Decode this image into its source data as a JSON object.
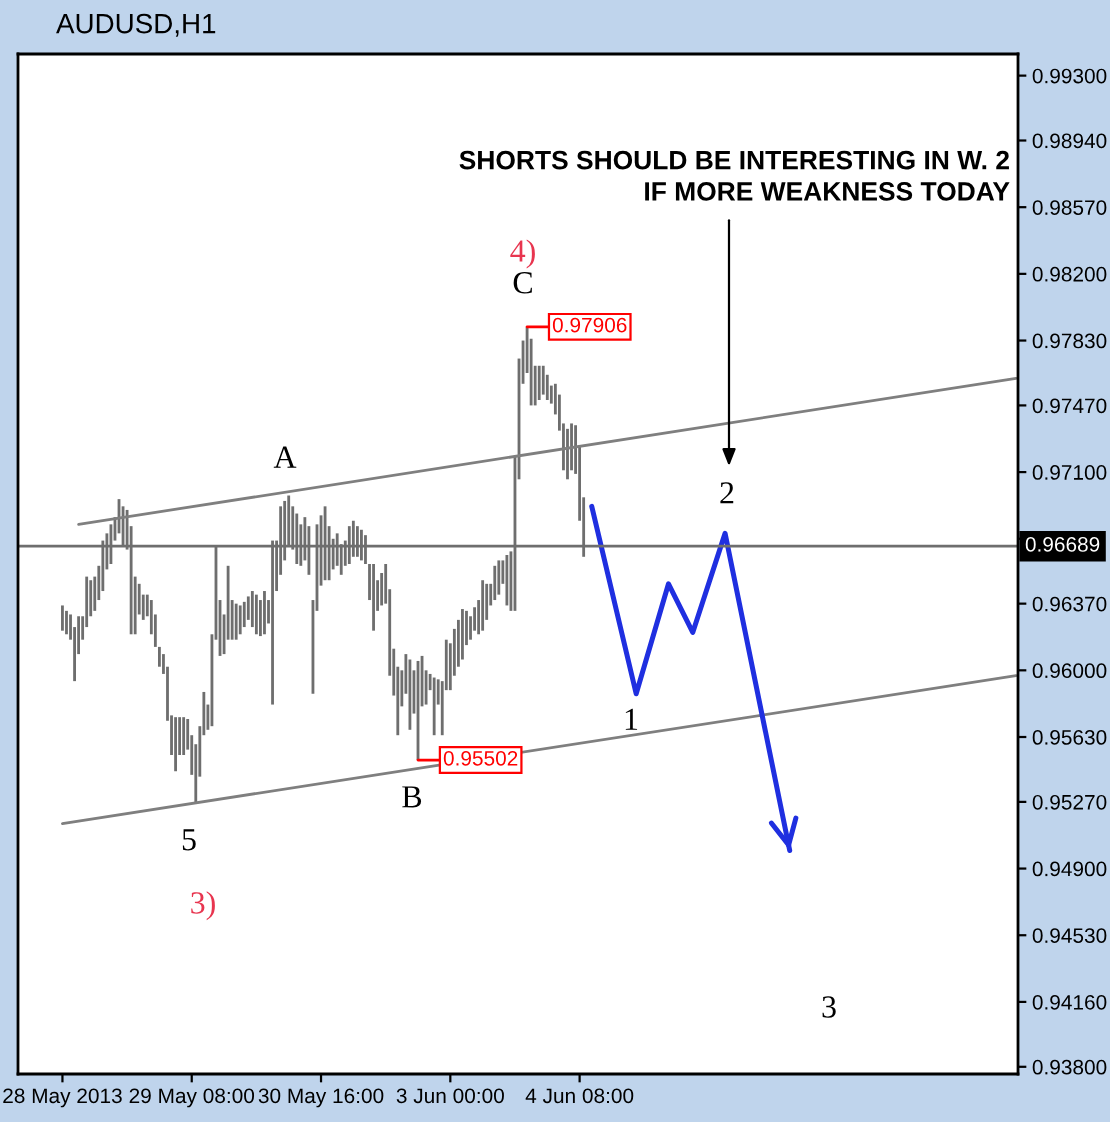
{
  "chart_data": {
    "type": "bar",
    "title": "AUDUSD,H1",
    "categories": [
      "28 May 2013",
      null,
      null,
      null,
      null,
      null,
      null,
      null,
      null,
      null,
      null,
      null,
      null,
      null,
      null,
      null,
      null,
      null,
      null,
      null,
      null,
      null,
      null,
      null,
      null,
      null,
      null,
      null,
      null,
      null,
      null,
      null,
      "29 May 08:00",
      null,
      null,
      null,
      null,
      null,
      null,
      null,
      null,
      null,
      null,
      null,
      null,
      null,
      null,
      null,
      null,
      null,
      null,
      null,
      null,
      null,
      null,
      null,
      null,
      null,
      null,
      null,
      null,
      null,
      null,
      null,
      "30 May 16:00",
      null,
      null,
      null,
      null,
      null,
      null,
      null,
      null,
      null,
      null,
      null,
      null,
      null,
      null,
      null,
      null,
      null,
      null,
      null,
      null,
      null,
      null,
      null,
      null,
      null,
      null,
      null,
      null,
      null,
      null,
      null,
      "3 Jun 00:00",
      null,
      null,
      null,
      null,
      null,
      null,
      null,
      null,
      null,
      null,
      null,
      null,
      null,
      null,
      null,
      null,
      null,
      null,
      null,
      null,
      null,
      null,
      null,
      null,
      null,
      null,
      null,
      null,
      null,
      null,
      null,
      "4 Jun 08:00",
      null,
      null,
      null,
      null,
      null,
      null,
      null,
      null,
      null,
      null,
      null,
      null,
      null,
      null,
      null,
      null,
      null,
      null,
      null,
      null,
      null,
      null,
      null,
      null,
      null,
      null,
      null,
      null,
      null,
      null,
      null,
      null,
      null,
      null,
      null,
      null,
      null,
      null,
      null,
      null,
      null,
      null,
      null,
      null,
      null,
      null,
      null,
      null,
      null,
      null,
      null,
      null,
      null,
      null,
      null,
      null,
      null,
      null,
      null,
      null,
      null,
      null,
      null,
      null,
      null,
      null,
      null,
      null,
      null,
      null,
      null,
      null,
      null,
      null,
      null,
      null,
      null,
      null,
      null,
      null,
      null,
      null,
      null,
      null,
      null,
      null,
      null,
      null,
      null,
      null,
      null,
      null,
      null,
      null,
      null,
      null,
      null,
      null,
      null,
      null,
      null,
      null,
      null,
      null,
      null,
      null,
      null,
      null
    ],
    "ylim": [
      0.9376,
      0.9942
    ],
    "yticks": [
      {
        "value": 0.993,
        "label": "0.99300"
      },
      {
        "value": 0.9894,
        "label": "0.98940"
      },
      {
        "value": 0.9857,
        "label": "0.98570"
      },
      {
        "value": 0.982,
        "label": "0.98200"
      },
      {
        "value": 0.9783,
        "label": "0.97830"
      },
      {
        "value": 0.9747,
        "label": "0.97470"
      },
      {
        "value": 0.971,
        "label": "0.97100"
      },
      {
        "value": 0.9673,
        "label": null
      },
      {
        "value": 0.9637,
        "label": "0.96370"
      },
      {
        "value": 0.96,
        "label": "0.96000"
      },
      {
        "value": 0.9563,
        "label": "0.95630"
      },
      {
        "value": 0.9527,
        "label": "0.95270"
      },
      {
        "value": 0.949,
        "label": "0.94900"
      },
      {
        "value": 0.9453,
        "label": "0.94530"
      },
      {
        "value": 0.9416,
        "label": "0.94160"
      },
      {
        "value": 0.938,
        "label": "0.93800"
      }
    ],
    "series": [
      {
        "color": "#6e6e6e",
        "base": [
          0.9622,
          0.962,
          0.9617,
          0.9594,
          0.9609,
          0.9617,
          0.9624,
          0.963,
          0.9633,
          0.9639,
          0.9644,
          0.9656,
          0.9659,
          0.9672,
          0.9676,
          0.9669,
          0.9667,
          0.962,
          0.962,
          0.9631,
          0.9628,
          0.963,
          0.962,
          0.9613,
          0.9602,
          0.9598,
          0.9572,
          0.9553,
          0.9544,
          0.9553,
          0.9553,
          0.9556,
          0.9542,
          0.9526,
          0.9541,
          0.9564,
          0.9567,
          0.9569,
          0.9617,
          0.9608,
          0.9609,
          0.9617,
          0.9617,
          0.9617,
          0.962,
          0.9624,
          0.9628,
          0.9624,
          0.962,
          0.9619,
          0.962,
          0.9626,
          0.9581,
          0.9644,
          0.9653,
          0.9661,
          0.9669,
          0.9667,
          0.9659,
          0.9658,
          0.9661,
          0.9653,
          0.9587,
          0.9633,
          0.9647,
          0.965,
          0.965,
          0.9656,
          0.9658,
          0.9653,
          0.9658,
          0.9659,
          0.9663,
          0.9663,
          0.9661,
          0.9659,
          0.9639,
          0.9622,
          0.9633,
          0.9636,
          0.9637,
          0.9597,
          0.9586,
          0.9564,
          0.958,
          0.9587,
          0.9567,
          0.9576,
          0.95502,
          0.958,
          0.9581,
          0.9589,
          0.9564,
          0.9581,
          0.9564,
          0.9589,
          0.9589,
          0.9597,
          0.9602,
          0.9606,
          0.9614,
          0.9617,
          0.9622,
          0.962,
          0.9622,
          0.9628,
          0.9636,
          0.9639,
          0.9642,
          0.9648,
          0.9636,
          0.9633,
          0.9633,
          0.9706,
          0.9759,
          0.9765,
          0.9747,
          0.9747,
          0.975,
          0.9753,
          0.975,
          0.9748,
          0.9742,
          0.9733,
          0.9711,
          0.9706,
          0.9711,
          0.9709,
          0.9683,
          0.9663,
          null,
          null,
          null,
          null,
          null,
          null,
          null,
          null,
          null,
          null,
          null,
          null,
          null,
          null,
          null,
          null,
          null,
          null,
          null,
          null,
          null,
          null,
          null,
          null,
          null,
          null,
          null,
          null,
          null,
          null,
          null,
          null,
          null,
          null,
          null,
          null,
          null,
          null,
          null,
          null,
          null,
          null,
          null,
          null,
          null,
          null,
          null,
          null,
          null,
          null,
          null,
          null,
          null,
          null,
          null,
          null,
          null,
          null,
          null,
          null,
          null,
          null,
          null,
          null,
          null,
          null,
          null,
          null,
          null,
          null,
          null,
          null,
          null,
          null,
          null,
          null,
          null,
          null,
          null,
          null,
          null,
          null,
          null,
          null,
          null,
          null,
          null,
          null,
          null,
          null,
          null,
          null,
          null,
          null,
          null,
          null,
          null,
          null,
          null,
          null,
          null,
          null,
          null,
          null,
          null,
          null,
          null
        ],
        "values": [
          0.0014,
          0.0013,
          0.0014,
          0.003,
          0.0021,
          0.0013,
          0.0028,
          0.002,
          0.0019,
          0.0019,
          0.0028,
          0.002,
          0.0022,
          0.0013,
          0.0019,
          0.0022,
          0.0022,
          0.006,
          0.0032,
          0.0017,
          0.0014,
          0.0012,
          0.0019,
          0.0018,
          0.0011,
          0.0011,
          0.003,
          0.0022,
          0.003,
          0.0021,
          0.0021,
          0.0017,
          0.0022,
          0.0033,
          0.0028,
          0.0024,
          0.0014,
          0.0051,
          0.0052,
          0.0031,
          0.0022,
          0.0041,
          0.0022,
          0.002,
          0.0016,
          0.0014,
          0.0013,
          0.002,
          0.0022,
          0.002,
          0.0024,
          0.0013,
          0.0091,
          0.0028,
          0.0038,
          0.0033,
          0.0028,
          0.0024,
          0.0028,
          0.0023,
          0.0024,
          0.0027,
          0.0052,
          0.0048,
          0.0039,
          0.0041,
          0.003,
          0.0017,
          0.0018,
          0.0017,
          0.0014,
          0.0021,
          0.002,
          0.0017,
          0.0017,
          0.0016,
          0.002,
          0.0037,
          0.0017,
          0.0018,
          0.0022,
          0.0048,
          0.0026,
          0.0038,
          0.002,
          0.0022,
          0.0039,
          0.0024,
          0.0055,
          0.0028,
          0.0019,
          0.0009,
          0.0032,
          0.0014,
          0.003,
          0.0028,
          0.0026,
          0.0026,
          0.0026,
          0.0028,
          0.0019,
          0.0013,
          0.0013,
          0.0019,
          0.0028,
          0.002,
          0.0012,
          0.0019,
          0.0019,
          0.0013,
          0.0028,
          0.0033,
          0.0086,
          0.0067,
          0.0024,
          0.00256,
          0.0037,
          0.0022,
          0.0019,
          0.0016,
          0.0014,
          0.001,
          0.0017,
          0.002,
          0.0026,
          0.0028,
          0.0026,
          0.0027,
          0.0042,
          0.0033,
          null,
          null,
          null,
          null,
          null,
          null,
          null,
          null,
          null,
          null,
          null,
          null,
          null,
          null,
          null,
          null,
          null,
          null,
          null,
          null,
          null,
          null,
          null,
          null,
          null,
          null,
          null,
          null,
          null,
          null,
          null,
          null,
          null,
          null,
          null,
          null,
          null,
          null,
          null,
          null,
          null,
          null,
          null,
          null,
          null,
          null,
          null,
          null,
          null,
          null,
          null,
          null,
          null,
          null,
          null,
          null,
          null,
          null,
          null,
          null,
          null,
          null,
          null,
          null,
          null,
          null,
          null,
          null,
          null,
          null,
          null,
          null,
          null,
          null,
          null,
          null,
          null,
          null,
          null,
          null,
          null,
          null,
          null,
          null,
          null,
          null,
          null,
          null,
          null,
          null,
          null,
          null,
          null,
          null,
          null,
          null,
          null,
          null,
          null,
          null,
          null,
          null,
          null,
          null,
          null,
          null,
          null
        ]
      },
      {
        "type": "line",
        "color": "#7f7f7f",
        "values": [
          null,
          null,
          null,
          null,
          0.9681,
          null,
          null,
          null,
          null,
          null,
          null,
          null,
          null,
          null,
          null,
          null,
          null,
          null,
          null,
          null,
          null,
          null,
          null,
          null,
          null,
          null,
          null,
          null,
          null,
          null,
          null,
          null,
          null,
          null,
          null,
          null,
          null,
          null,
          null,
          null,
          null,
          null,
          null,
          null,
          null,
          null,
          null,
          null,
          null,
          null,
          null,
          null,
          null,
          null,
          null,
          null,
          null,
          null,
          null,
          null,
          null,
          null,
          null,
          null,
          null,
          null,
          null,
          null,
          null,
          null,
          null,
          null,
          null,
          null,
          null,
          null,
          null,
          null,
          null,
          null,
          null,
          null,
          null,
          null,
          null,
          null,
          null,
          null,
          null,
          null,
          null,
          null,
          null,
          null,
          null,
          null,
          null,
          null,
          null,
          null,
          null,
          null,
          null,
          null,
          null,
          null,
          null,
          null,
          null,
          null,
          null,
          null,
          null,
          null,
          null,
          null,
          null,
          null,
          null,
          null,
          null,
          null,
          null,
          null,
          null,
          null,
          null,
          null,
          null,
          null,
          null,
          null,
          null,
          null,
          null,
          null,
          null,
          null,
          null,
          null,
          null,
          null,
          null,
          null,
          null,
          null,
          null,
          null,
          null,
          null,
          null,
          null,
          null,
          null,
          null,
          null,
          null,
          null,
          null,
          null,
          null,
          null,
          null,
          null,
          null,
          null,
          null,
          null,
          null,
          null,
          null,
          null,
          null,
          null,
          null,
          null,
          null,
          null,
          null,
          null,
          null,
          null,
          null,
          null,
          null,
          null,
          null,
          null,
          null,
          null,
          null,
          null,
          null,
          null,
          null,
          null,
          null,
          null,
          null,
          null,
          null,
          null,
          null,
          null,
          null,
          null,
          null,
          null,
          null,
          null,
          null,
          null,
          null,
          null,
          null,
          null,
          null,
          null,
          null,
          null,
          null,
          null,
          null,
          null,
          null,
          null,
          null,
          null,
          null,
          null,
          null,
          null,
          null,
          null,
          null,
          null,
          0.9762
        ]
      },
      {
        "type": "line",
        "color": "#7f7f7f",
        "values": [
          0.9515,
          null,
          null,
          null,
          null,
          null,
          null,
          null,
          null,
          null,
          null,
          null,
          null,
          null,
          null,
          null,
          null,
          null,
          null,
          null,
          null,
          null,
          null,
          null,
          null,
          null,
          null,
          null,
          null,
          null,
          null,
          null,
          null,
          null,
          null,
          null,
          null,
          null,
          null,
          null,
          null,
          null,
          null,
          null,
          null,
          null,
          null,
          null,
          null,
          null,
          null,
          null,
          null,
          null,
          null,
          null,
          null,
          null,
          null,
          null,
          null,
          null,
          null,
          null,
          null,
          null,
          null,
          null,
          null,
          null,
          null,
          null,
          null,
          null,
          null,
          null,
          null,
          null,
          null,
          null,
          null,
          null,
          null,
          null,
          null,
          null,
          null,
          null,
          null,
          null,
          null,
          null,
          null,
          null,
          null,
          null,
          null,
          null,
          null,
          null,
          null,
          null,
          null,
          null,
          null,
          null,
          null,
          null,
          null,
          null,
          null,
          null,
          null,
          null,
          null,
          null,
          null,
          null,
          null,
          null,
          null,
          null,
          null,
          null,
          null,
          null,
          null,
          null,
          null,
          null,
          null,
          null,
          null,
          null,
          null,
          null,
          null,
          null,
          null,
          null,
          null,
          null,
          null,
          null,
          null,
          null,
          null,
          null,
          null,
          null,
          null,
          null,
          null,
          null,
          null,
          null,
          null,
          null,
          null,
          null,
          null,
          null,
          null,
          null,
          null,
          null,
          null,
          null,
          null,
          null,
          null,
          null,
          null,
          null,
          null,
          null,
          null,
          null,
          null,
          null,
          null,
          null,
          null,
          null,
          null,
          null,
          null,
          null,
          null,
          null,
          null,
          null,
          null,
          null,
          null,
          null,
          null,
          null,
          null,
          null,
          null,
          null,
          null,
          null,
          null,
          null,
          null,
          null,
          null,
          null,
          null,
          null,
          null,
          null,
          null,
          null,
          null,
          null,
          null,
          null,
          null,
          null,
          null,
          null,
          null,
          null,
          null,
          null,
          null,
          null,
          null,
          null,
          null,
          null,
          null,
          null,
          0.9597
        ]
      },
      {
        "type": "line",
        "color": "#1f2fe0",
        "values": [
          null,
          null,
          null,
          null,
          null,
          null,
          null,
          null,
          null,
          null,
          null,
          null,
          null,
          null,
          null,
          null,
          null,
          null,
          null,
          null,
          null,
          null,
          null,
          null,
          null,
          null,
          null,
          null,
          null,
          null,
          null,
          null,
          null,
          null,
          null,
          null,
          null,
          null,
          null,
          null,
          null,
          null,
          null,
          null,
          null,
          null,
          null,
          null,
          null,
          null,
          null,
          null,
          null,
          null,
          null,
          null,
          null,
          null,
          null,
          null,
          null,
          null,
          null,
          null,
          null,
          null,
          null,
          null,
          null,
          null,
          null,
          null,
          null,
          null,
          null,
          null,
          null,
          null,
          null,
          null,
          null,
          null,
          null,
          null,
          null,
          null,
          null,
          null,
          null,
          null,
          null,
          null,
          null,
          null,
          null,
          null,
          null,
          null,
          null,
          null,
          null,
          null,
          null,
          null,
          null,
          null,
          null,
          null,
          null,
          null,
          null,
          null,
          null,
          null,
          null,
          null,
          null,
          null,
          null,
          null,
          null,
          null,
          null,
          null,
          null,
          null,
          null,
          null,
          null,
          null,
          null,
          0.9691,
          null,
          null,
          null,
          null,
          null,
          null,
          null,
          null,
          null,
          null,
          0.9587,
          null,
          null,
          null,
          null,
          null,
          null,
          null,
          0.9648,
          null,
          null,
          null,
          null,
          null,
          0.9621,
          null,
          null,
          null,
          null,
          null,
          null,
          null,
          0.9676,
          null,
          null,
          null,
          null,
          null,
          null,
          null,
          null,
          null,
          null,
          null,
          null,
          null,
          null,
          null,
          0.95,
          null,
          null,
          null,
          null,
          null,
          null,
          null,
          null,
          null,
          null,
          null,
          null,
          null,
          null,
          null,
          null,
          null,
          null,
          null,
          null,
          null,
          null,
          null,
          null,
          null,
          null,
          null,
          null,
          null,
          null,
          null,
          null,
          null,
          null,
          null,
          null,
          null,
          null,
          null,
          null,
          null,
          null,
          null,
          null,
          null,
          null,
          null,
          null,
          null,
          null,
          null,
          null,
          null,
          null,
          null,
          null
        ]
      }
    ],
    "ref_lines": [
      {
        "axis": "y",
        "value": 0.96689,
        "label": "0.96689",
        "color": "#6e6e6e"
      }
    ],
    "annotations": [
      "SHORTS SHOULD BE INTERESTING IN W. 2\nIF MORE WEAKNESS TODAY",
      "4)",
      "C",
      "A",
      "2",
      "1",
      "B",
      "5",
      "3)",
      "3",
      {
        "text": "0.97906",
        "y": 0.97906
      },
      {
        "text": "0.95502",
        "y": 0.95502
      }
    ]
  }
}
